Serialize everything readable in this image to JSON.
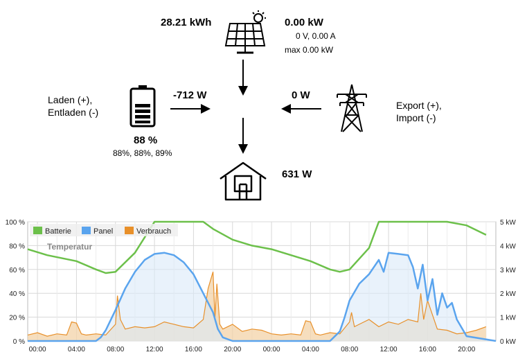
{
  "flow": {
    "solar_energy": "28.21 kWh",
    "solar_power": "0.00 kW",
    "solar_vi": "0 V, 0.00 A",
    "solar_max": "max 0.00 kW",
    "battery_power": "-712 W",
    "battery_label_line1": "Laden (+),",
    "battery_label_line2": "Entladen (-)",
    "battery_soc": "88 %",
    "battery_soc_detail": "88%, 88%, 89%",
    "grid_power": "0 W",
    "grid_label_line1": "Export (+),",
    "grid_label_line2": "Import (-)",
    "house_power": "631 W"
  },
  "icons": {
    "solar": "solar-panel-icon",
    "battery": "battery-icon",
    "grid": "power-pylon-icon",
    "house": "house-icon"
  },
  "colors": {
    "battery": "#6cc04a",
    "panel": "#5aa4ee",
    "consumption": "#e8902a"
  },
  "chart_data": {
    "type": "line",
    "legend": [
      "Batterie",
      "Panel",
      "Verbrauch"
    ],
    "legend_placement": "top-left",
    "overlay_label": "Temperatur",
    "grid": true,
    "x_ticks": [
      "00:00",
      "04:00",
      "08:00",
      "12:00",
      "16:00",
      "20:00",
      "00:00",
      "04:00",
      "08:00",
      "12:00",
      "16:00",
      "20:00"
    ],
    "y_left_ticks": [
      "0 %",
      "20 %",
      "40 %",
      "60 %",
      "80 %",
      "100 %"
    ],
    "y_right_ticks": [
      "0 kW",
      "1 kW",
      "2 kW",
      "3 kW",
      "4 kW",
      "5 kW"
    ],
    "y_left_range": [
      0,
      100
    ],
    "y_right_range": [
      0,
      5
    ],
    "x_range_hours": [
      -1,
      47
    ],
    "series": [
      {
        "name": "Batterie",
        "axis": "left",
        "color": "#6cc04a",
        "x": [
          -1,
          1,
          4,
          6,
          7,
          8,
          10,
          12,
          14,
          16,
          17,
          18,
          20,
          22,
          24,
          26,
          28,
          30,
          31,
          32,
          34,
          35,
          36,
          38,
          40,
          42,
          44,
          46
        ],
        "y": [
          77,
          72,
          67,
          60,
          57,
          58,
          74,
          100,
          100,
          100,
          100,
          94,
          85,
          80,
          77,
          72,
          67,
          60,
          58,
          60,
          78,
          100,
          100,
          100,
          100,
          100,
          97,
          89
        ]
      },
      {
        "name": "Panel",
        "axis": "right",
        "color": "#5aa4ee",
        "x": [
          -1,
          6,
          6.5,
          7,
          8,
          9,
          10,
          11,
          12,
          13,
          14,
          15,
          16,
          17,
          18,
          18.5,
          19,
          20,
          22,
          30,
          31,
          31.5,
          32,
          33,
          34,
          35,
          35.5,
          36,
          37,
          38,
          38.5,
          39,
          39.5,
          40,
          40.5,
          41,
          41.5,
          42,
          42.5,
          43,
          44,
          47
        ],
        "y": [
          0,
          0,
          0.15,
          0.45,
          1.3,
          2.2,
          2.9,
          3.4,
          3.65,
          3.7,
          3.6,
          3.3,
          2.8,
          2.0,
          1.2,
          0.5,
          0.15,
          0,
          0,
          0,
          0.4,
          1.0,
          1.7,
          2.4,
          2.8,
          3.4,
          2.9,
          3.7,
          3.65,
          3.6,
          3.1,
          2.2,
          3.2,
          1.7,
          2.6,
          1.1,
          2.0,
          1.4,
          1.6,
          0.9,
          0.2,
          0
        ]
      },
      {
        "name": "Verbrauch",
        "axis": "right",
        "color": "#e8902a",
        "x": [
          -1,
          0,
          1,
          2,
          3,
          3.5,
          4,
          4.5,
          5,
          6,
          7,
          8,
          8.2,
          8.5,
          9,
          10,
          11,
          12,
          13,
          14,
          15,
          16,
          17,
          17.5,
          18,
          18.2,
          18.4,
          18.7,
          19,
          20,
          21,
          22,
          23,
          24,
          25,
          26,
          27,
          27.5,
          28,
          28.5,
          29,
          30,
          31,
          32,
          32.2,
          32.5,
          33,
          34,
          35,
          36,
          37,
          38,
          39,
          39.3,
          39.6,
          40,
          41,
          42,
          43,
          44,
          45,
          46
        ],
        "y": [
          0.25,
          0.35,
          0.2,
          0.3,
          0.25,
          0.8,
          0.75,
          0.3,
          0.25,
          0.3,
          0.25,
          0.7,
          1.9,
          0.9,
          0.5,
          0.6,
          0.55,
          0.6,
          0.8,
          0.7,
          0.6,
          0.55,
          0.9,
          2.2,
          2.9,
          1.0,
          2.4,
          0.7,
          0.5,
          0.7,
          0.4,
          0.5,
          0.45,
          0.3,
          0.25,
          0.3,
          0.25,
          0.85,
          0.8,
          0.3,
          0.25,
          0.35,
          0.3,
          0.8,
          1.2,
          0.6,
          0.7,
          0.9,
          0.6,
          0.8,
          0.7,
          0.9,
          0.8,
          2.0,
          0.9,
          1.7,
          0.5,
          0.45,
          0.3,
          0.35,
          0.45,
          0.6
        ]
      }
    ]
  }
}
